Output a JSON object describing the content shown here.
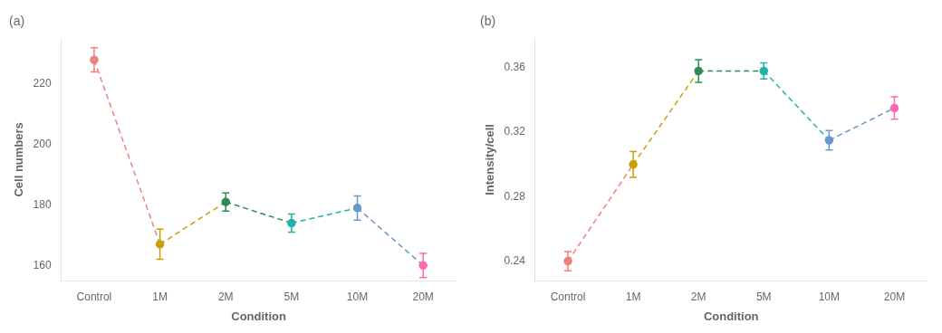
{
  "chart_data": [
    {
      "type": "line",
      "title": "(a)",
      "categories": [
        "Control",
        "1M",
        "2M",
        "5M",
        "10M",
        "20M"
      ],
      "values": [
        228,
        167,
        181,
        174,
        179,
        160
      ],
      "errors": [
        4,
        5,
        3,
        3,
        4,
        4
      ],
      "xlabel": "Condition",
      "ylabel": "Cell numbers",
      "ylim": [
        155,
        235
      ],
      "yticks": [
        160,
        180,
        200,
        220
      ],
      "colors": [
        "#F08080",
        "#C8A000",
        "#2E8B57",
        "#20B2AA",
        "#6699CC",
        "#FF69B4"
      ],
      "marker": "circle",
      "line_style": "dashed",
      "grid": false
    },
    {
      "type": "line",
      "title": "(b)",
      "categories": [
        "Control",
        "1M",
        "2M",
        "5M",
        "10M",
        "20M"
      ],
      "values": [
        0.24,
        0.3,
        0.358,
        0.358,
        0.315,
        0.335
      ],
      "errors": [
        0.006,
        0.008,
        0.007,
        0.005,
        0.006,
        0.007
      ],
      "xlabel": "Condition",
      "ylabel": "Intensity/cell",
      "ylim": [
        0.228,
        0.378
      ],
      "yticks": [
        0.24,
        0.28,
        0.32,
        0.36
      ],
      "colors": [
        "#F08080",
        "#C8A000",
        "#2E8B57",
        "#20B2AA",
        "#6699CC",
        "#FF69B4"
      ],
      "marker": "circle",
      "line_style": "dashed",
      "grid": false
    }
  ]
}
